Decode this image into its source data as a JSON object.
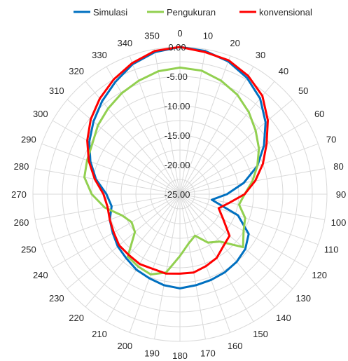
{
  "chart_data": {
    "type": "radar",
    "title": "",
    "legend_position": "top",
    "angles": [
      0,
      10,
      20,
      30,
      40,
      50,
      60,
      70,
      80,
      90,
      100,
      110,
      120,
      130,
      140,
      150,
      160,
      170,
      180,
      190,
      200,
      210,
      220,
      230,
      240,
      250,
      260,
      270,
      280,
      290,
      300,
      310,
      320,
      330,
      340,
      350
    ],
    "angle_labels": [
      "0",
      "10",
      "20",
      "30",
      "40",
      "50",
      "60",
      "70",
      "80",
      "90",
      "100",
      "110",
      "120",
      "130",
      "140",
      "150",
      "160",
      "170",
      "180",
      "190",
      "200",
      "210",
      "220",
      "230",
      "240",
      "250",
      "260",
      "270",
      "280",
      "290",
      "300",
      "310",
      "320",
      "330",
      "340",
      "350"
    ],
    "radial_axis": {
      "min": -25,
      "max": 0,
      "step": 5,
      "tick_labels": [
        "0.00",
        "-5.00",
        "-10.00",
        "-15.00",
        "-20.00",
        "-25.00"
      ],
      "tick_values": [
        0,
        -5,
        -10,
        -15,
        -20,
        -25
      ]
    },
    "grid": true,
    "series": [
      {
        "name": "Simulasi",
        "color": "#0070C0",
        "values": [
          0.0,
          -0.3,
          -1.0,
          -2.2,
          -3.8,
          -6.0,
          -8.5,
          -11.0,
          -14.0,
          -17.0,
          -19.5,
          -14.5,
          -11.5,
          -10.5,
          -10.0,
          -9.7,
          -9.5,
          -9.3,
          -9.0,
          -9.3,
          -9.8,
          -10.2,
          -10.8,
          -11.2,
          -11.8,
          -12.3,
          -13.2,
          -12.5,
          -10.5,
          -8.8,
          -7.2,
          -5.8,
          -4.4,
          -3.0,
          -1.5,
          -0.5
        ]
      },
      {
        "name": "Pengukuran",
        "color": "#92D050",
        "values": [
          -3.5,
          -3.7,
          -4.5,
          -5.5,
          -6.8,
          -8.2,
          -9.5,
          -11.0,
          -12.5,
          -14.0,
          -14.8,
          -13.2,
          -12.5,
          -11.0,
          -14.5,
          -15.5,
          -17.5,
          -16.5,
          -14.5,
          -11.5,
          -10.5,
          -10.8,
          -11.2,
          -15.0,
          -15.5,
          -14.5,
          -12.0,
          -10.0,
          -8.5,
          -8.2,
          -7.8,
          -6.8,
          -6.0,
          -5.2,
          -4.5,
          -3.8
        ]
      },
      {
        "name": "konvensional",
        "color": "#FF0000",
        "values": [
          0.0,
          -0.5,
          -0.8,
          -1.8,
          -3.2,
          -5.5,
          -8.0,
          -10.0,
          -12.0,
          -14.0,
          -16.5,
          -18.0,
          -16.5,
          -14.0,
          -13.5,
          -12.5,
          -12.0,
          -11.5,
          -11.5,
          -11.3,
          -11.5,
          -11.3,
          -11.5,
          -11.5,
          -12.0,
          -12.3,
          -12.5,
          -12.0,
          -10.3,
          -8.5,
          -6.8,
          -5.2,
          -3.8,
          -2.5,
          -1.3,
          -0.3
        ]
      }
    ]
  }
}
